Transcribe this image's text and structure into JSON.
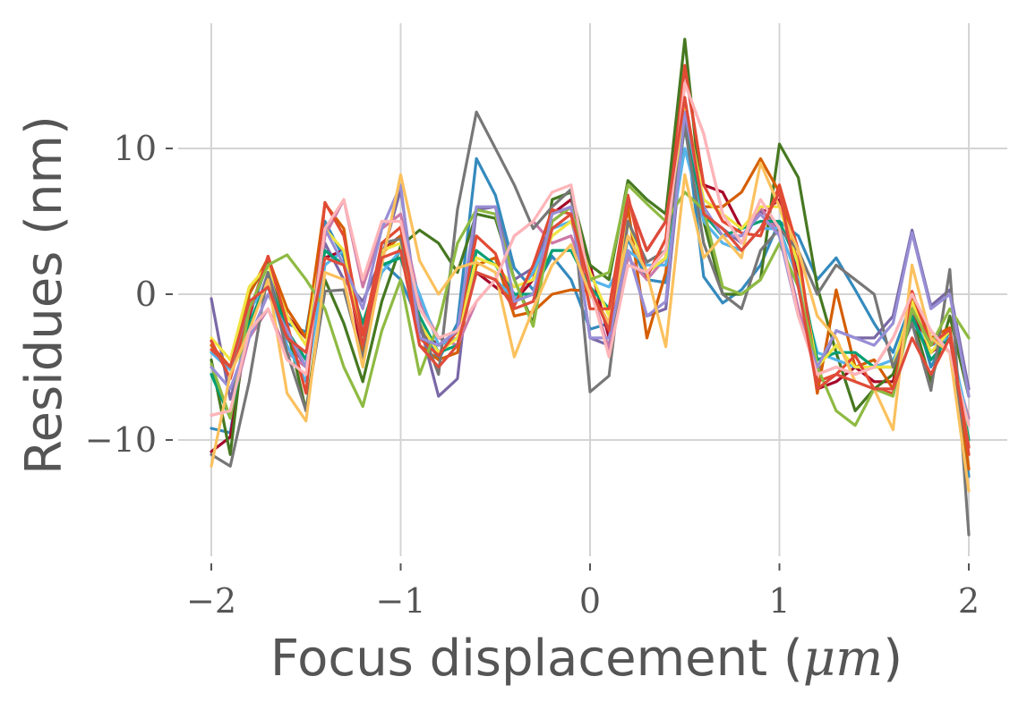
{
  "chart_data": {
    "type": "line",
    "xlabel": "Focus displacement (",
    "xlabel_unit": "μm",
    "xlabel_close": ")",
    "ylabel": "Residues (nm)",
    "xlim": [
      -2.1,
      2.1
    ],
    "ylim": [
      -18.5,
      18.8
    ],
    "xticks": [
      -2,
      -1,
      0,
      1,
      2
    ],
    "xtick_labels": [
      "−2",
      "−1",
      "0",
      "1",
      "2"
    ],
    "yticks": [
      -10,
      0,
      10
    ],
    "ytick_labels": [
      "−10",
      "0",
      "10"
    ],
    "grid": true,
    "x": [
      -2.0,
      -1.9,
      -1.8,
      -1.7,
      -1.6,
      -1.5,
      -1.4,
      -1.3,
      -1.2,
      -1.1,
      -1.0,
      -0.9,
      -0.8,
      -0.7,
      -0.6,
      -0.5,
      -0.4,
      -0.3,
      -0.2,
      -0.1,
      0.0,
      0.1,
      0.2,
      0.3,
      0.4,
      0.5,
      0.6,
      0.7,
      0.8,
      0.9,
      1.0,
      1.1,
      1.2,
      1.3,
      1.4,
      1.5,
      1.6,
      1.7,
      1.8,
      1.9,
      2.0
    ],
    "series": [
      {
        "color": "#348ABD",
        "values": [
          -9.2,
          -9.5,
          -1.5,
          2.2,
          -2.0,
          -2.6,
          5.0,
          2.5,
          -3.0,
          2.2,
          1.0,
          -2.0,
          -4.5,
          -2.0,
          9.3,
          6.8,
          1.8,
          0.3,
          2.6,
          1.0,
          -2.4,
          -2.0,
          3.8,
          1.0,
          0.8,
          12.0,
          1.2,
          -0.6,
          0.3,
          2.0,
          5.0,
          4.0,
          1.0,
          2.5,
          0.3,
          -2.0,
          -4.0,
          -0.5,
          -5.0,
          -2.5,
          -12.5
        ]
      },
      {
        "color": "#A60628",
        "values": [
          -10.8,
          -9.8,
          -1.5,
          2.6,
          -1.5,
          -3.0,
          2.5,
          3.0,
          -4.5,
          3.0,
          4.0,
          -2.5,
          -3.5,
          -2.5,
          1.5,
          0.5,
          -0.5,
          1.0,
          5.5,
          6.5,
          2.0,
          -3.0,
          6.5,
          3.0,
          5.0,
          15.6,
          7.5,
          7.0,
          4.5,
          5.5,
          6.5,
          1.0,
          -6.5,
          -6.0,
          -5.0,
          -6.0,
          -6.0,
          -1.0,
          -4.0,
          -3.0,
          -10.5
        ]
      },
      {
        "color": "#7A68A6",
        "values": [
          -0.3,
          -7.2,
          -2.5,
          1.5,
          -3.0,
          -5.0,
          3.5,
          1.0,
          -0.5,
          2.5,
          7.2,
          -2.0,
          -7.0,
          -5.8,
          5.8,
          6.0,
          1.0,
          1.8,
          5.0,
          6.0,
          -3.0,
          -3.5,
          3.0,
          -1.5,
          -1.0,
          12.0,
          5.5,
          4.5,
          3.5,
          5.8,
          4.5,
          -1.0,
          -5.5,
          -2.5,
          -3.0,
          -3.0,
          -1.5,
          4.4,
          -0.8,
          0.3,
          -6.5
        ]
      },
      {
        "color": "#467821",
        "values": [
          -4.5,
          -11.0,
          0.0,
          2.3,
          -2.3,
          -8.0,
          1.0,
          -2.0,
          -6.0,
          -0.5,
          3.3,
          4.4,
          3.5,
          1.5,
          5.5,
          5.2,
          1.0,
          -2.0,
          6.5,
          7.0,
          2.0,
          1.0,
          7.8,
          6.5,
          5.5,
          17.5,
          5.0,
          0.0,
          0.0,
          1.0,
          10.3,
          8.0,
          0.5,
          -4.0,
          -8.0,
          -6.5,
          -5.5,
          -1.5,
          -6.0,
          -1.5,
          -7.0
        ]
      },
      {
        "color": "#D55E00",
        "values": [
          -3.5,
          -5.0,
          0.0,
          2.5,
          -1.0,
          -3.0,
          6.2,
          4.5,
          -4.0,
          2.8,
          4.0,
          -3.5,
          -4.5,
          -4.0,
          2.0,
          2.5,
          -1.5,
          -1.2,
          0.0,
          0.3,
          0.2,
          -2.0,
          6.0,
          -3.0,
          1.5,
          13.4,
          6.0,
          6.0,
          7.0,
          9.3,
          7.0,
          2.0,
          -6.8,
          0.3,
          -5.0,
          -4.5,
          -6.5,
          -0.3,
          -3.0,
          -2.3,
          -12.0
        ]
      },
      {
        "color": "#CC79A7",
        "values": [
          -8.3,
          -8.0,
          -3.0,
          -1.0,
          -4.0,
          -5.0,
          4.0,
          6.5,
          0.5,
          4.5,
          5.5,
          -0.5,
          -3.0,
          -3.5,
          -0.5,
          1.0,
          4.0,
          5.0,
          3.5,
          4.0,
          0.5,
          -3.8,
          2.5,
          1.0,
          2.5,
          14.5,
          11.0,
          5.5,
          3.5,
          6.0,
          4.0,
          -1.0,
          -5.5,
          -5.0,
          -5.5,
          -5.0,
          -3.0,
          0.0,
          -2.5,
          -4.0,
          -8.5
        ]
      },
      {
        "color": "#56B4E9",
        "values": [
          -4.0,
          -5.2,
          -1.0,
          0.5,
          -3.5,
          -6.0,
          2.0,
          3.0,
          -2.5,
          1.5,
          3.0,
          0.0,
          -3.5,
          -3.0,
          1.5,
          1.0,
          -0.3,
          1.5,
          4.5,
          5.0,
          1.0,
          0.5,
          3.0,
          2.0,
          2.0,
          10.0,
          5.0,
          3.5,
          3.0,
          4.5,
          4.5,
          1.0,
          -4.0,
          -4.5,
          -5.0,
          -5.0,
          -4.5,
          -2.0,
          -3.5,
          -3.0,
          -9.0
        ]
      },
      {
        "color": "#009E73",
        "values": [
          -5.5,
          -8.5,
          -2.0,
          1.0,
          -2.5,
          -4.5,
          3.0,
          2.0,
          -2.0,
          2.0,
          2.5,
          -1.5,
          -4.0,
          -3.5,
          3.0,
          2.0,
          0.0,
          0.0,
          3.0,
          3.0,
          0.5,
          -1.0,
          4.0,
          1.5,
          2.5,
          11.5,
          5.5,
          4.0,
          4.5,
          5.0,
          5.0,
          2.0,
          -4.5,
          -4.0,
          -4.0,
          -5.0,
          -5.0,
          -1.5,
          -4.5,
          -3.0,
          -10.0
        ]
      },
      {
        "color": "#F0E442",
        "values": [
          -3.0,
          -4.5,
          0.5,
          2.0,
          -1.5,
          -3.5,
          4.5,
          3.0,
          -3.5,
          3.0,
          3.5,
          -2.0,
          -4.0,
          -3.0,
          2.5,
          2.0,
          0.5,
          1.0,
          4.0,
          5.0,
          1.5,
          -1.5,
          5.0,
          1.5,
          2.5,
          13.0,
          6.5,
          5.5,
          4.5,
          6.0,
          6.0,
          2.0,
          -5.0,
          -3.5,
          -5.0,
          -5.0,
          -5.0,
          -0.5,
          -4.0,
          -2.5,
          -10.5
        ]
      },
      {
        "color": "#777777",
        "values": [
          -11.0,
          -11.8,
          -6.0,
          1.5,
          -4.0,
          -8.0,
          0.2,
          0.3,
          -4.5,
          3.5,
          3.8,
          -2.0,
          -5.5,
          5.8,
          12.5,
          10.0,
          7.5,
          4.5,
          6.0,
          7.2,
          -6.7,
          -5.6,
          5.0,
          2.2,
          3.0,
          11.5,
          3.5,
          0.0,
          -1.0,
          3.0,
          4.5,
          3.0,
          0.0,
          2.0,
          1.0,
          0.0,
          -5.0,
          -2.0,
          -6.6,
          1.7,
          -16.5
        ]
      },
      {
        "color": "#E24A33",
        "values": [
          -3.2,
          -5.8,
          -1.3,
          2.6,
          -2.0,
          -6.8,
          6.3,
          4.0,
          -2.8,
          3.5,
          4.6,
          -3.0,
          -4.2,
          -2.5,
          4.0,
          2.8,
          -0.8,
          2.0,
          5.8,
          5.5,
          -1.0,
          -1.0,
          6.8,
          1.2,
          3.8,
          15.7,
          7.5,
          5.0,
          4.2,
          4.0,
          7.5,
          3.0,
          -6.0,
          -5.5,
          -4.2,
          -6.5,
          -6.8,
          0.2,
          -3.5,
          -2.4,
          -11.0
        ]
      },
      {
        "color": "#8EBA42",
        "values": [
          -4.8,
          -8.5,
          -1.0,
          2.0,
          2.7,
          1.0,
          -1.0,
          -5.0,
          -7.7,
          -2.5,
          1.0,
          -5.5,
          -2.0,
          3.5,
          5.8,
          5.5,
          1.0,
          -2.2,
          5.0,
          6.0,
          1.0,
          1.5,
          7.5,
          6.2,
          5.0,
          7.0,
          5.8,
          0.5,
          0.0,
          1.0,
          3.5,
          0.5,
          -5.0,
          -8.0,
          -9.0,
          -6.5,
          -7.0,
          -1.0,
          -3.5,
          -1.0,
          -3.0
        ]
      },
      {
        "color": "#988ED5",
        "values": [
          -5.0,
          -6.5,
          -3.0,
          0.0,
          -2.5,
          -5.0,
          4.5,
          2.0,
          -1.0,
          4.5,
          7.5,
          -3.0,
          -3.5,
          -2.5,
          6.0,
          6.0,
          -0.5,
          0.0,
          5.5,
          6.0,
          -3.0,
          -3.0,
          3.0,
          -1.5,
          -0.5,
          12.5,
          6.0,
          4.0,
          4.0,
          5.5,
          4.0,
          -1.5,
          -5.0,
          -2.5,
          -3.0,
          -3.5,
          -2.0,
          4.2,
          -1.0,
          0.0,
          -7.0
        ]
      },
      {
        "color": "#FBC15E",
        "values": [
          -11.8,
          -5.5,
          -2.5,
          1.0,
          -6.8,
          -8.7,
          1.5,
          1.0,
          -5.0,
          2.0,
          8.2,
          2.3,
          0.0,
          1.8,
          2.2,
          1.5,
          -4.3,
          -1.0,
          2.0,
          3.4,
          0.0,
          -2.0,
          4.0,
          1.5,
          -3.6,
          8.2,
          2.5,
          4.0,
          2.5,
          9.0,
          6.0,
          3.0,
          -1.5,
          -3.0,
          -6.0,
          -6.5,
          -9.3,
          2.0,
          -3.0,
          -4.0,
          -13.5
        ]
      },
      {
        "color": "#FFB5B8",
        "values": [
          -8.3,
          -8.0,
          -2.5,
          -1.0,
          -4.5,
          -5.5,
          4.5,
          6.5,
          1.0,
          5.0,
          5.0,
          -1.0,
          -3.0,
          -2.5,
          -0.5,
          1.0,
          4.0,
          5.0,
          7.0,
          7.5,
          0.5,
          -4.3,
          2.0,
          1.5,
          3.0,
          14.5,
          11.0,
          5.5,
          3.5,
          6.5,
          4.5,
          -1.5,
          -5.5,
          -5.0,
          -5.5,
          -5.0,
          -3.0,
          0.0,
          -2.5,
          -4.0,
          -9.0
        ]
      },
      {
        "color": "#DF4B3A",
        "values": [
          -3.8,
          -5.0,
          -0.5,
          0.5,
          -3.0,
          -4.0,
          2.5,
          2.0,
          -3.5,
          2.5,
          3.0,
          -3.5,
          -5.0,
          -3.5,
          1.5,
          1.0,
          -1.0,
          -0.5,
          4.5,
          5.5,
          0.5,
          -2.5,
          6.5,
          3.0,
          5.0,
          13.5,
          5.5,
          4.5,
          3.0,
          4.5,
          7.0,
          0.5,
          -6.5,
          -5.5,
          -6.0,
          -6.5,
          -6.5,
          -3.0,
          -5.5,
          -3.0,
          -10.5
        ]
      }
    ]
  }
}
